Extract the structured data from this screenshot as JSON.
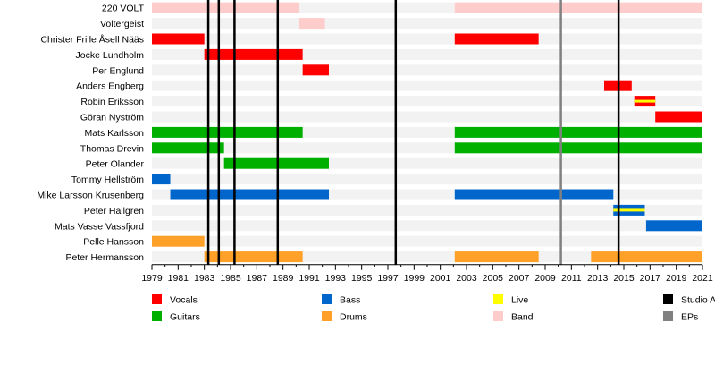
{
  "chart_data": {
    "type": "timeline",
    "title": "",
    "xlabel": "",
    "ylabel": "",
    "xlim": [
      1979,
      2021
    ],
    "xticks": [
      "1979",
      "1981",
      "1983",
      "1985",
      "1987",
      "1989",
      "1991",
      "1993",
      "1995",
      "1997",
      "1999",
      "2001",
      "2003",
      "2005",
      "2007",
      "2009",
      "2011",
      "2013",
      "2015",
      "2017",
      "2019",
      "2021"
    ],
    "grid": false,
    "members": [
      {
        "name": "220 VOLT",
        "bars": [
          {
            "role": "Band",
            "start": 1979,
            "end": 1990.2
          },
          {
            "role": "Band",
            "start": 2002.1,
            "end": 2021
          }
        ]
      },
      {
        "name": "Voltergeist",
        "bars": [
          {
            "role": "Band",
            "start": 1990.2,
            "end": 1992.2
          }
        ]
      },
      {
        "name": "Christer Frille Åsell Nääs",
        "bars": [
          {
            "role": "Vocals",
            "start": 1979,
            "end": 1983
          },
          {
            "role": "Vocals",
            "start": 2002.1,
            "end": 2008.5
          }
        ]
      },
      {
        "name": "Jocke Lundholm",
        "bars": [
          {
            "role": "Vocals",
            "start": 1983,
            "end": 1990.5
          }
        ]
      },
      {
        "name": "Per Englund",
        "bars": [
          {
            "role": "Vocals",
            "start": 1990.5,
            "end": 1992.5
          }
        ]
      },
      {
        "name": "Anders Engberg",
        "bars": [
          {
            "role": "Vocals",
            "start": 2013.5,
            "end": 2015.6
          }
        ]
      },
      {
        "name": "Robin Eriksson",
        "bars": [
          {
            "role": "Vocals",
            "start": 2015.8,
            "end": 2017.4,
            "live": true
          }
        ]
      },
      {
        "name": "Göran Nyström",
        "bars": [
          {
            "role": "Vocals",
            "start": 2017.4,
            "end": 2021
          }
        ]
      },
      {
        "name": "Mats Karlsson",
        "bars": [
          {
            "role": "Guitars",
            "start": 1979,
            "end": 1990.5
          },
          {
            "role": "Guitars",
            "start": 2002.1,
            "end": 2021
          }
        ]
      },
      {
        "name": "Thomas Drevin",
        "bars": [
          {
            "role": "Guitars",
            "start": 1979,
            "end": 1984.5
          },
          {
            "role": "Guitars",
            "start": 2002.1,
            "end": 2021
          }
        ]
      },
      {
        "name": "Peter Olander",
        "bars": [
          {
            "role": "Guitars",
            "start": 1984.5,
            "end": 1992.5
          }
        ]
      },
      {
        "name": "Tommy Hellström",
        "bars": [
          {
            "role": "Bass",
            "start": 1979,
            "end": 1980.4
          }
        ]
      },
      {
        "name": "Mike Larsson Krusenberg",
        "bars": [
          {
            "role": "Bass",
            "start": 1980.4,
            "end": 1992.5
          },
          {
            "role": "Bass",
            "start": 2002.1,
            "end": 2014.2
          }
        ]
      },
      {
        "name": "Peter Hallgren",
        "bars": [
          {
            "role": "Bass",
            "start": 2014.2,
            "end": 2016.6,
            "live": true
          }
        ]
      },
      {
        "name": "Mats Vasse Vassfjord",
        "bars": [
          {
            "role": "Bass",
            "start": 2016.7,
            "end": 2021
          }
        ]
      },
      {
        "name": "Pelle Hansson",
        "bars": [
          {
            "role": "Drums",
            "start": 1979,
            "end": 1983
          }
        ]
      },
      {
        "name": "Peter Hermansson",
        "bars": [
          {
            "role": "Drums",
            "start": 1983,
            "end": 1990.5
          },
          {
            "role": "Drums",
            "start": 2002.1,
            "end": 2008.5
          },
          {
            "role": "Drums",
            "start": 2012.5,
            "end": 2021
          }
        ]
      }
    ],
    "studio_albums": [
      1983.3,
      1984.1,
      1985.3,
      1988.6,
      1997.6,
      2014.6
    ],
    "eps": [
      2010.2
    ],
    "legend": [
      {
        "label": "Vocals",
        "color": "#ff0000"
      },
      {
        "label": "Guitars",
        "color": "#00b000"
      },
      {
        "label": "Bass",
        "color": "#0066cc"
      },
      {
        "label": "Drums",
        "color": "#ffa028"
      },
      {
        "label": "Live",
        "color": "#ffff00"
      },
      {
        "label": "Band",
        "color": "#ffcccc"
      },
      {
        "label": "Studio A",
        "color": "#000000"
      },
      {
        "label": "EPs",
        "color": "#808080"
      }
    ]
  }
}
